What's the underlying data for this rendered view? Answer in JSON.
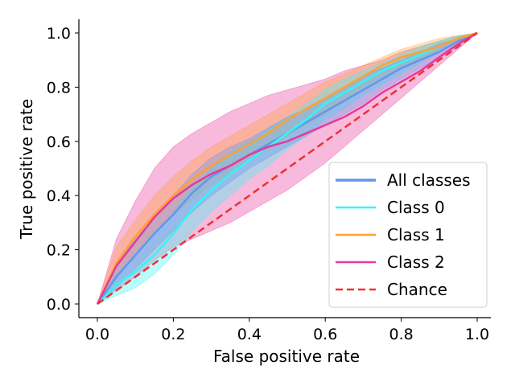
{
  "chart_data": {
    "type": "line",
    "xlabel": "False positive rate",
    "ylabel": "True positive rate",
    "xlim": [
      0,
      1
    ],
    "ylim": [
      0,
      1
    ],
    "xticks": [
      "0.0",
      "0.2",
      "0.4",
      "0.6",
      "0.8",
      "1.0"
    ],
    "yticks": [
      "0.0",
      "0.2",
      "0.4",
      "0.6",
      "0.8",
      "1.0"
    ],
    "grid": false,
    "legend_position": "bottom-right",
    "series": [
      {
        "name": "All classes",
        "color": "#6495ED",
        "style": "solid",
        "x": [
          0,
          0.05,
          0.1,
          0.15,
          0.2,
          0.25,
          0.3,
          0.35,
          0.4,
          0.45,
          0.5,
          0.55,
          0.6,
          0.65,
          0.7,
          0.75,
          0.8,
          0.85,
          0.9,
          0.95,
          1.0
        ],
        "y": [
          0,
          0.1,
          0.18,
          0.26,
          0.33,
          0.41,
          0.47,
          0.51,
          0.55,
          0.59,
          0.63,
          0.67,
          0.71,
          0.75,
          0.79,
          0.83,
          0.87,
          0.9,
          0.93,
          0.97,
          1.0
        ],
        "band_low": [
          0,
          0.06,
          0.13,
          0.2,
          0.27,
          0.34,
          0.4,
          0.45,
          0.5,
          0.54,
          0.58,
          0.62,
          0.66,
          0.7,
          0.74,
          0.79,
          0.83,
          0.87,
          0.91,
          0.95,
          1.0
        ],
        "band_high": [
          0,
          0.15,
          0.24,
          0.32,
          0.4,
          0.48,
          0.54,
          0.58,
          0.61,
          0.65,
          0.69,
          0.72,
          0.76,
          0.8,
          0.84,
          0.87,
          0.9,
          0.93,
          0.96,
          0.98,
          1.0
        ]
      },
      {
        "name": "Class 0",
        "color": "#33F5F5",
        "style": "solid",
        "x": [
          0,
          0.05,
          0.1,
          0.15,
          0.2,
          0.25,
          0.3,
          0.35,
          0.4,
          0.45,
          0.5,
          0.55,
          0.6,
          0.65,
          0.7,
          0.75,
          0.8,
          0.85,
          0.9,
          0.95,
          1.0
        ],
        "y": [
          0,
          0.07,
          0.12,
          0.18,
          0.26,
          0.35,
          0.42,
          0.48,
          0.53,
          0.58,
          0.63,
          0.68,
          0.74,
          0.78,
          0.82,
          0.86,
          0.89,
          0.92,
          0.95,
          0.98,
          1.0
        ],
        "band_low": [
          0,
          0.03,
          0.06,
          0.11,
          0.18,
          0.27,
          0.34,
          0.4,
          0.46,
          0.51,
          0.57,
          0.62,
          0.68,
          0.72,
          0.77,
          0.81,
          0.85,
          0.89,
          0.93,
          0.97,
          1.0
        ],
        "band_high": [
          0,
          0.11,
          0.18,
          0.25,
          0.34,
          0.43,
          0.5,
          0.56,
          0.6,
          0.65,
          0.69,
          0.74,
          0.79,
          0.83,
          0.86,
          0.89,
          0.92,
          0.95,
          0.97,
          0.99,
          1.0
        ]
      },
      {
        "name": "Class 1",
        "color": "#FFA033",
        "style": "solid",
        "x": [
          0,
          0.05,
          0.1,
          0.15,
          0.2,
          0.25,
          0.3,
          0.35,
          0.4,
          0.45,
          0.5,
          0.55,
          0.6,
          0.65,
          0.7,
          0.75,
          0.8,
          0.85,
          0.9,
          0.95,
          1.0
        ],
        "y": [
          0,
          0.15,
          0.25,
          0.33,
          0.4,
          0.46,
          0.51,
          0.55,
          0.59,
          0.63,
          0.68,
          0.72,
          0.76,
          0.8,
          0.84,
          0.88,
          0.91,
          0.93,
          0.95,
          0.98,
          1.0
        ],
        "band_low": [
          0,
          0.1,
          0.18,
          0.26,
          0.33,
          0.39,
          0.44,
          0.48,
          0.53,
          0.57,
          0.62,
          0.66,
          0.7,
          0.75,
          0.79,
          0.83,
          0.87,
          0.9,
          0.93,
          0.97,
          1.0
        ],
        "band_high": [
          0,
          0.21,
          0.31,
          0.4,
          0.47,
          0.53,
          0.58,
          0.62,
          0.66,
          0.7,
          0.74,
          0.78,
          0.82,
          0.85,
          0.88,
          0.91,
          0.94,
          0.96,
          0.98,
          0.99,
          1.0
        ]
      },
      {
        "name": "Class 2",
        "color": "#E8399A",
        "style": "solid",
        "x": [
          0,
          0.05,
          0.1,
          0.15,
          0.2,
          0.25,
          0.3,
          0.35,
          0.4,
          0.45,
          0.5,
          0.55,
          0.6,
          0.65,
          0.7,
          0.75,
          0.8,
          0.85,
          0.9,
          0.95,
          1.0
        ],
        "y": [
          0,
          0.14,
          0.23,
          0.32,
          0.39,
          0.44,
          0.48,
          0.51,
          0.55,
          0.58,
          0.6,
          0.63,
          0.66,
          0.69,
          0.73,
          0.78,
          0.82,
          0.86,
          0.91,
          0.96,
          1.0
        ],
        "band_low": [
          0,
          0.05,
          0.1,
          0.16,
          0.21,
          0.24,
          0.27,
          0.3,
          0.34,
          0.38,
          0.42,
          0.47,
          0.52,
          0.58,
          0.64,
          0.7,
          0.76,
          0.82,
          0.88,
          0.94,
          1.0
        ],
        "band_high": [
          0,
          0.24,
          0.38,
          0.5,
          0.58,
          0.63,
          0.67,
          0.71,
          0.74,
          0.77,
          0.79,
          0.81,
          0.83,
          0.86,
          0.88,
          0.9,
          0.93,
          0.95,
          0.97,
          0.99,
          1.0
        ]
      },
      {
        "name": "Chance",
        "color": "#F03030",
        "style": "dashed",
        "x": [
          0,
          1
        ],
        "y": [
          0,
          1
        ]
      }
    ]
  }
}
